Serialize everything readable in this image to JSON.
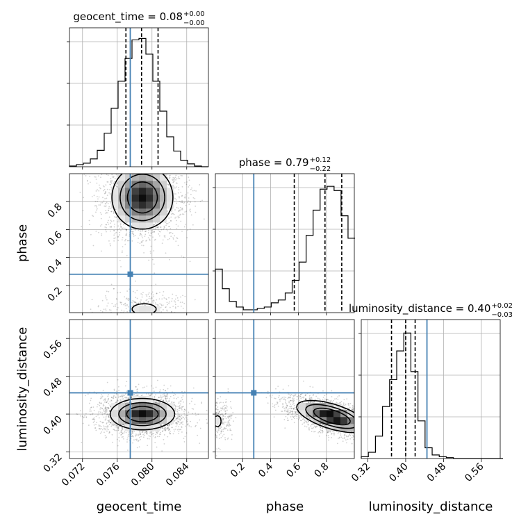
{
  "chart_data": {
    "type": "corner",
    "parameters": [
      "geocent_time",
      "phase",
      "luminosity_distance"
    ],
    "axis_labels": {
      "geocent_time": "geocent_time",
      "phase": "phase",
      "luminosity_distance": "luminosity_distance"
    },
    "ranges": {
      "geocent_time": [
        0.0705,
        0.0865
      ],
      "phase": [
        0.005,
        1.0
      ],
      "luminosity_distance": [
        0.306,
        0.6
      ]
    },
    "ticks": {
      "geocent_time": [
        "0.072",
        "0.076",
        "0.080",
        "0.084"
      ],
      "phase": [
        "0.2",
        "0.4",
        "0.6",
        "0.8"
      ],
      "luminosity_distance": [
        "0.32",
        "0.40",
        "0.48",
        "0.56"
      ]
    },
    "tick_values": {
      "geocent_time": [
        0.072,
        0.076,
        0.08,
        0.084
      ],
      "phase": [
        0.2,
        0.4,
        0.6,
        0.8
      ],
      "luminosity_distance": [
        0.32,
        0.4,
        0.48,
        0.56
      ]
    },
    "truths": {
      "geocent_time": 0.0775,
      "phase": 0.28,
      "luminosity_distance": 0.445
    },
    "truth_color": "#4682b4",
    "quantile_color": "#000000",
    "titles": {
      "geocent_time": {
        "text": "geocent_time = 0.08",
        "plus": "+0.00",
        "minus": "−0.00"
      },
      "phase": {
        "text": "phase = 0.79",
        "plus": "+0.12",
        "minus": "−0.22"
      },
      "luminosity_distance": {
        "text": "luminosity_distance = 0.40",
        "plus": "+0.02",
        "minus": "−0.03"
      }
    },
    "quantiles": {
      "geocent_time": [
        0.077,
        0.0788,
        0.0807
      ],
      "phase": [
        0.57,
        0.79,
        0.91
      ],
      "luminosity_distance": [
        0.37,
        0.4,
        0.42
      ]
    },
    "histograms": {
      "geocent_time": {
        "edges": [
          0.0705,
          0.0713,
          0.0721,
          0.0729,
          0.0737,
          0.0745,
          0.0753,
          0.0761,
          0.0769,
          0.0777,
          0.0785,
          0.0793,
          0.0801,
          0.0809,
          0.0817,
          0.0825,
          0.0833,
          0.0841,
          0.0849,
          0.0857,
          0.0865
        ],
        "counts": [
          1,
          3,
          5,
          11,
          23,
          47,
          82,
          120,
          152,
          178,
          180,
          158,
          120,
          78,
          42,
          22,
          9,
          4,
          1,
          0
        ],
        "ymax": 195
      },
      "phase": {
        "edges": [
          0.005,
          0.055,
          0.105,
          0.155,
          0.205,
          0.255,
          0.305,
          0.355,
          0.405,
          0.455,
          0.505,
          0.555,
          0.605,
          0.655,
          0.705,
          0.755,
          0.805,
          0.855,
          0.905,
          0.955,
          1.005
        ],
        "counts": [
          31,
          17,
          8,
          4,
          2,
          2,
          3,
          4,
          7,
          9,
          14,
          23,
          36,
          55,
          73,
          88,
          90,
          87,
          69,
          53
        ],
        "ymax": 99
      },
      "luminosity_distance": {
        "edges": [
          0.306,
          0.321,
          0.336,
          0.351,
          0.366,
          0.381,
          0.396,
          0.411,
          0.426,
          0.441,
          0.456,
          0.471,
          0.486,
          0.501,
          0.516,
          0.531,
          0.546,
          0.561,
          0.576,
          0.591,
          0.606
        ],
        "counts": [
          2,
          7,
          25,
          58,
          88,
          120,
          140,
          97,
          42,
          12,
          4,
          2,
          1,
          0,
          0,
          0,
          0,
          0,
          0,
          0
        ],
        "ymax": 155
      }
    },
    "joint": {
      "phase_vs_geocent_time": {
        "modes": [
          {
            "x": 0.0789,
            "y": 0.83,
            "sx": 0.0017,
            "sy": 0.11,
            "w": 0.86
          },
          {
            "x": 0.0791,
            "y": 0.03,
            "sx": 0.0018,
            "sy": 0.05,
            "w": 0.14
          }
        ]
      },
      "luminosity_distance_vs_geocent_time": {
        "modes": [
          {
            "x": 0.0789,
            "y": 0.4,
            "sx": 0.0018,
            "sy": 0.016,
            "w": 1.0
          }
        ]
      },
      "luminosity_distance_vs_phase": {
        "modes": [
          {
            "x": 0.84,
            "y": 0.395,
            "sx": 0.12,
            "sy": 0.016,
            "w": 0.88,
            "rho": -0.6
          },
          {
            "x": 0.02,
            "y": 0.385,
            "sx": 0.04,
            "sy": 0.018,
            "w": 0.12
          }
        ]
      }
    }
  }
}
